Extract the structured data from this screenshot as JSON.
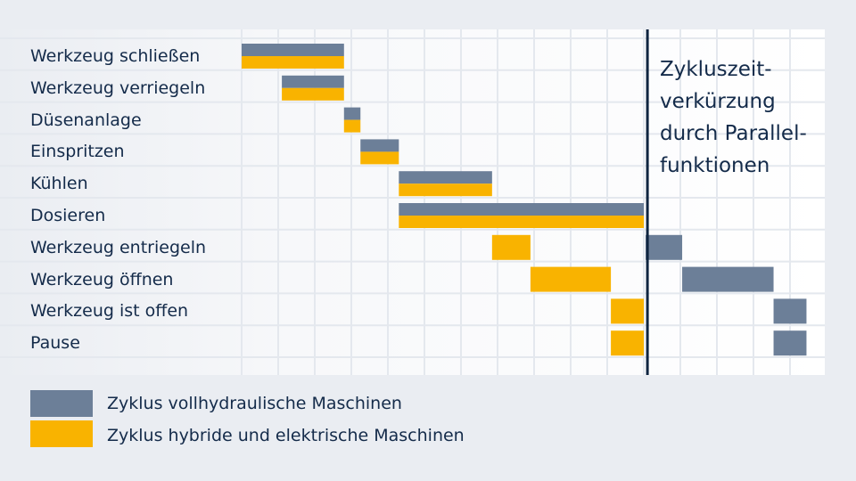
{
  "chart_data": {
    "type": "gantt",
    "tasks": [
      "Werkzeug schließen",
      "Werkzeug verriegeln",
      "Düsenanlage",
      "Einspritzen",
      "Kühlen",
      "Dosieren",
      "Werkzeug entriegeln",
      "Werkzeug öffnen",
      "Werkzeug ist offen",
      "Pause"
    ],
    "series": [
      {
        "name": "Zyklus vollhydraulische Maschinen",
        "color": "#6c7f98",
        "bars": [
          {
            "task": 0,
            "start": 0.0,
            "end": 2.8
          },
          {
            "task": 1,
            "start": 1.1,
            "end": 2.8
          },
          {
            "task": 2,
            "start": 2.8,
            "end": 3.25
          },
          {
            "task": 3,
            "start": 3.25,
            "end": 4.3
          },
          {
            "task": 4,
            "start": 4.3,
            "end": 6.85
          },
          {
            "task": 5,
            "start": 4.3,
            "end": 11.0
          },
          {
            "task": 6,
            "start": 11.05,
            "end": 12.05
          },
          {
            "task": 7,
            "start": 12.05,
            "end": 14.55
          },
          {
            "task": 8,
            "start": 14.55,
            "end": 15.45
          },
          {
            "task": 9,
            "start": 14.55,
            "end": 15.45
          }
        ]
      },
      {
        "name": "Zyklus hybride und elektrische Maschinen",
        "color": "#f9b300",
        "bars": [
          {
            "task": 0,
            "start": 0.0,
            "end": 2.8
          },
          {
            "task": 1,
            "start": 1.1,
            "end": 2.8
          },
          {
            "task": 2,
            "start": 2.8,
            "end": 3.25
          },
          {
            "task": 3,
            "start": 3.25,
            "end": 4.3
          },
          {
            "task": 4,
            "start": 4.3,
            "end": 6.85
          },
          {
            "task": 5,
            "start": 4.3,
            "end": 11.0
          },
          {
            "task": 6,
            "start": 6.85,
            "end": 7.9
          },
          {
            "task": 7,
            "start": 7.9,
            "end": 10.1
          },
          {
            "task": 8,
            "start": 10.1,
            "end": 11.0
          },
          {
            "task": 9,
            "start": 10.1,
            "end": 11.0
          }
        ]
      }
    ],
    "cycle_end_marker": 11.1,
    "annotation": "Zykluszeit-\nverkürzung\ndurch Parallel-\nfunktionen",
    "xlim": [
      0,
      16
    ],
    "grid": true,
    "legend": "bottom-left"
  }
}
